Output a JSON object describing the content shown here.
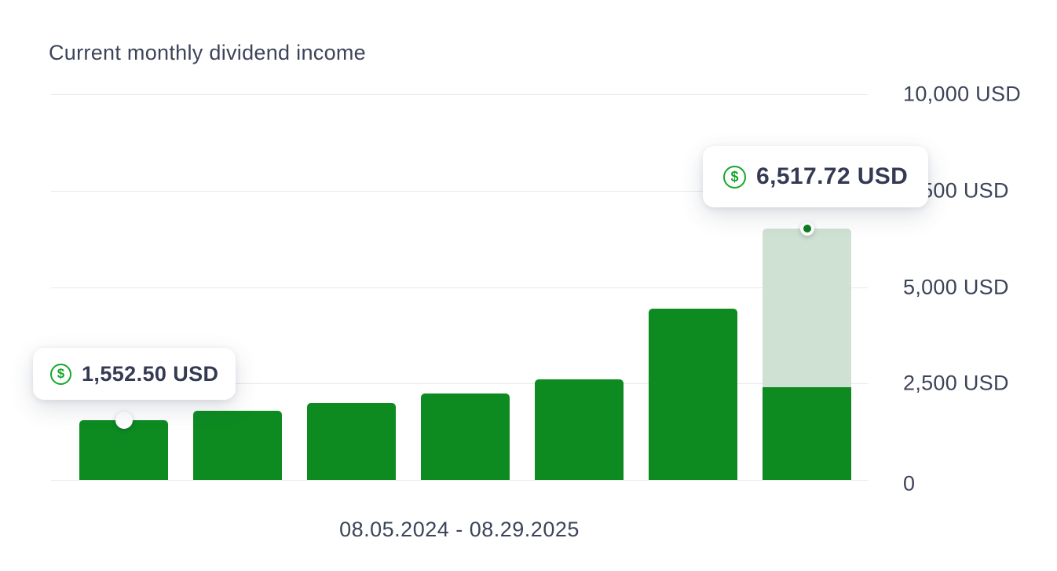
{
  "title": "Current monthly dividend income",
  "caption": "08.05.2024 - 08.29.2025",
  "colors": {
    "bar_green": "#0d8b21",
    "bar_light_green": "#cfe1d3",
    "icon_green": "#15a62c",
    "text": "#3d4359",
    "tooltip_text": "#343a54",
    "gridline": "#e8e9ed",
    "background": "#ffffff"
  },
  "y_axis": {
    "ticks": [
      {
        "label": "10,000 USD",
        "value": 10000
      },
      {
        "label": "7,500 USD",
        "value": 7500
      },
      {
        "label": "5,000 USD",
        "value": 5000
      },
      {
        "label": "2,500 USD",
        "value": 2500
      },
      {
        "label": "0",
        "value": 0
      }
    ]
  },
  "tooltips": {
    "first": {
      "icon": "dollar-icon",
      "label": "1,552.50 USD"
    },
    "last": {
      "icon": "dollar-icon",
      "label": "6,517.72 USD"
    }
  },
  "chart_data": {
    "type": "bar",
    "title": "Current monthly dividend income",
    "x_caption": "08.05.2024 - 08.29.2025",
    "ylabel": "USD",
    "ylim": [
      0,
      10000
    ],
    "grid": true,
    "legend": false,
    "bars": [
      {
        "value": 1552.5
      },
      {
        "value": 1800
      },
      {
        "value": 2000
      },
      {
        "value": 2250
      },
      {
        "value": 2600
      },
      {
        "value": 4450
      },
      {
        "value": 6517.72,
        "realized": 2400,
        "projected": true
      }
    ],
    "markers": [
      {
        "bar": 0,
        "style": "white"
      },
      {
        "bar": 6,
        "style": "green"
      }
    ],
    "annotations": [
      {
        "bar": 0,
        "label": "1,552.50 USD"
      },
      {
        "bar": 6,
        "label": "6,517.72 USD"
      }
    ]
  }
}
